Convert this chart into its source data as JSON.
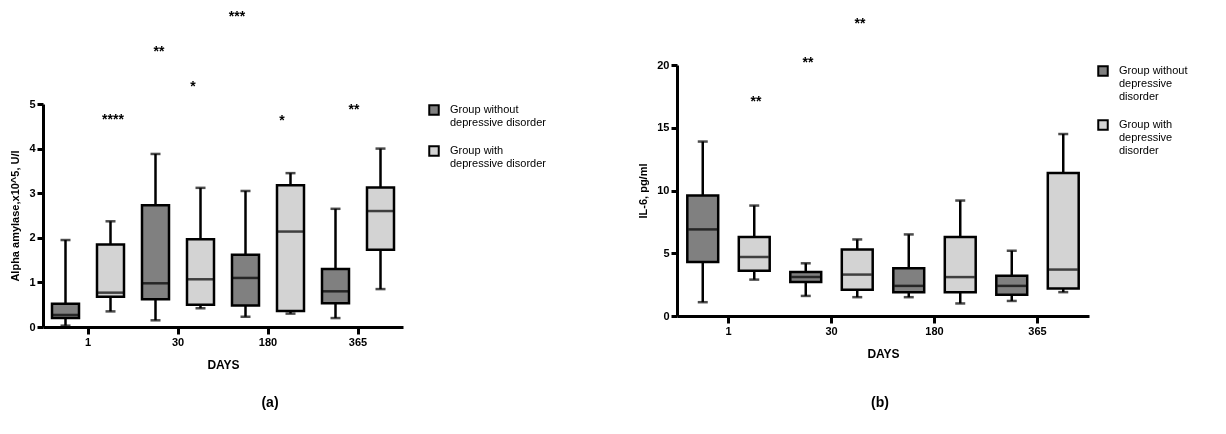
{
  "chart_data": [
    {
      "type": "box",
      "xlabel": "DAYS",
      "ylabel": "Alpha amylase,x10^5, U/l",
      "categories": [
        "1",
        "30",
        "180",
        "365"
      ],
      "ylim": [
        0,
        5
      ],
      "yticks": [
        0,
        1,
        2,
        3,
        4,
        5
      ],
      "legend": "right",
      "grid": false,
      "series": [
        {
          "name": "Group without depressive disorder",
          "color": "#808080",
          "boxes": [
            {
              "low": 0.03,
              "q1": 0.2,
              "median": 0.27,
              "q3": 0.52,
              "high": 1.95
            },
            {
              "low": 0.15,
              "q1": 0.62,
              "median": 0.98,
              "q3": 2.73,
              "high": 3.88
            },
            {
              "low": 0.23,
              "q1": 0.48,
              "median": 1.1,
              "q3": 1.62,
              "high": 3.05
            },
            {
              "low": 0.2,
              "q1": 0.53,
              "median": 0.8,
              "q3": 1.3,
              "high": 2.65
            }
          ]
        },
        {
          "name": "Group with depressive disorder",
          "color": "#d3d3d3",
          "boxes": [
            {
              "low": 0.35,
              "q1": 0.68,
              "median": 0.77,
              "q3": 1.85,
              "high": 2.37
            },
            {
              "low": 0.42,
              "q1": 0.5,
              "median": 1.07,
              "q3": 1.97,
              "high": 3.12
            },
            {
              "low": 0.3,
              "q1": 0.36,
              "median": 2.14,
              "q3": 3.18,
              "high": 3.45
            },
            {
              "low": 0.85,
              "q1": 1.73,
              "median": 2.6,
              "q3": 3.13,
              "high": 4.0
            }
          ]
        }
      ],
      "annotations": [
        "***",
        "**",
        "*",
        "****",
        "*",
        "**",
        "(a)"
      ]
    },
    {
      "type": "box",
      "xlabel": "DAYS",
      "ylabel": "IL-6, pg/ml",
      "categories": [
        "1",
        "30",
        "180",
        "365"
      ],
      "ylim": [
        0,
        20
      ],
      "yticks": [
        0,
        5,
        10,
        15,
        20
      ],
      "legend": "right",
      "grid": false,
      "series": [
        {
          "name": "Group without depressive disorder",
          "color": "#808080",
          "boxes": [
            {
              "low": 1.1,
              "q1": 4.3,
              "median": 6.9,
              "q3": 9.6,
              "high": 13.9
            },
            {
              "low": 1.6,
              "q1": 2.7,
              "median": 3.1,
              "q3": 3.5,
              "high": 4.2
            },
            {
              "low": 1.5,
              "q1": 1.9,
              "median": 2.4,
              "q3": 3.8,
              "high": 6.5
            },
            {
              "low": 1.2,
              "q1": 1.7,
              "median": 2.4,
              "q3": 3.2,
              "high": 5.2
            }
          ]
        },
        {
          "name": "Group with depressive disorder",
          "color": "#d3d3d3",
          "boxes": [
            {
              "low": 2.9,
              "q1": 3.6,
              "median": 4.7,
              "q3": 6.3,
              "high": 8.8
            },
            {
              "low": 1.5,
              "q1": 2.1,
              "median": 3.3,
              "q3": 5.3,
              "high": 6.1
            },
            {
              "low": 1.0,
              "q1": 1.9,
              "median": 3.1,
              "q3": 6.3,
              "high": 9.2
            },
            {
              "low": 1.9,
              "q1": 2.2,
              "median": 3.7,
              "q3": 11.4,
              "high": 14.5
            }
          ]
        }
      ],
      "annotations": [
        "**",
        "**",
        "**",
        "(b)"
      ]
    }
  ]
}
